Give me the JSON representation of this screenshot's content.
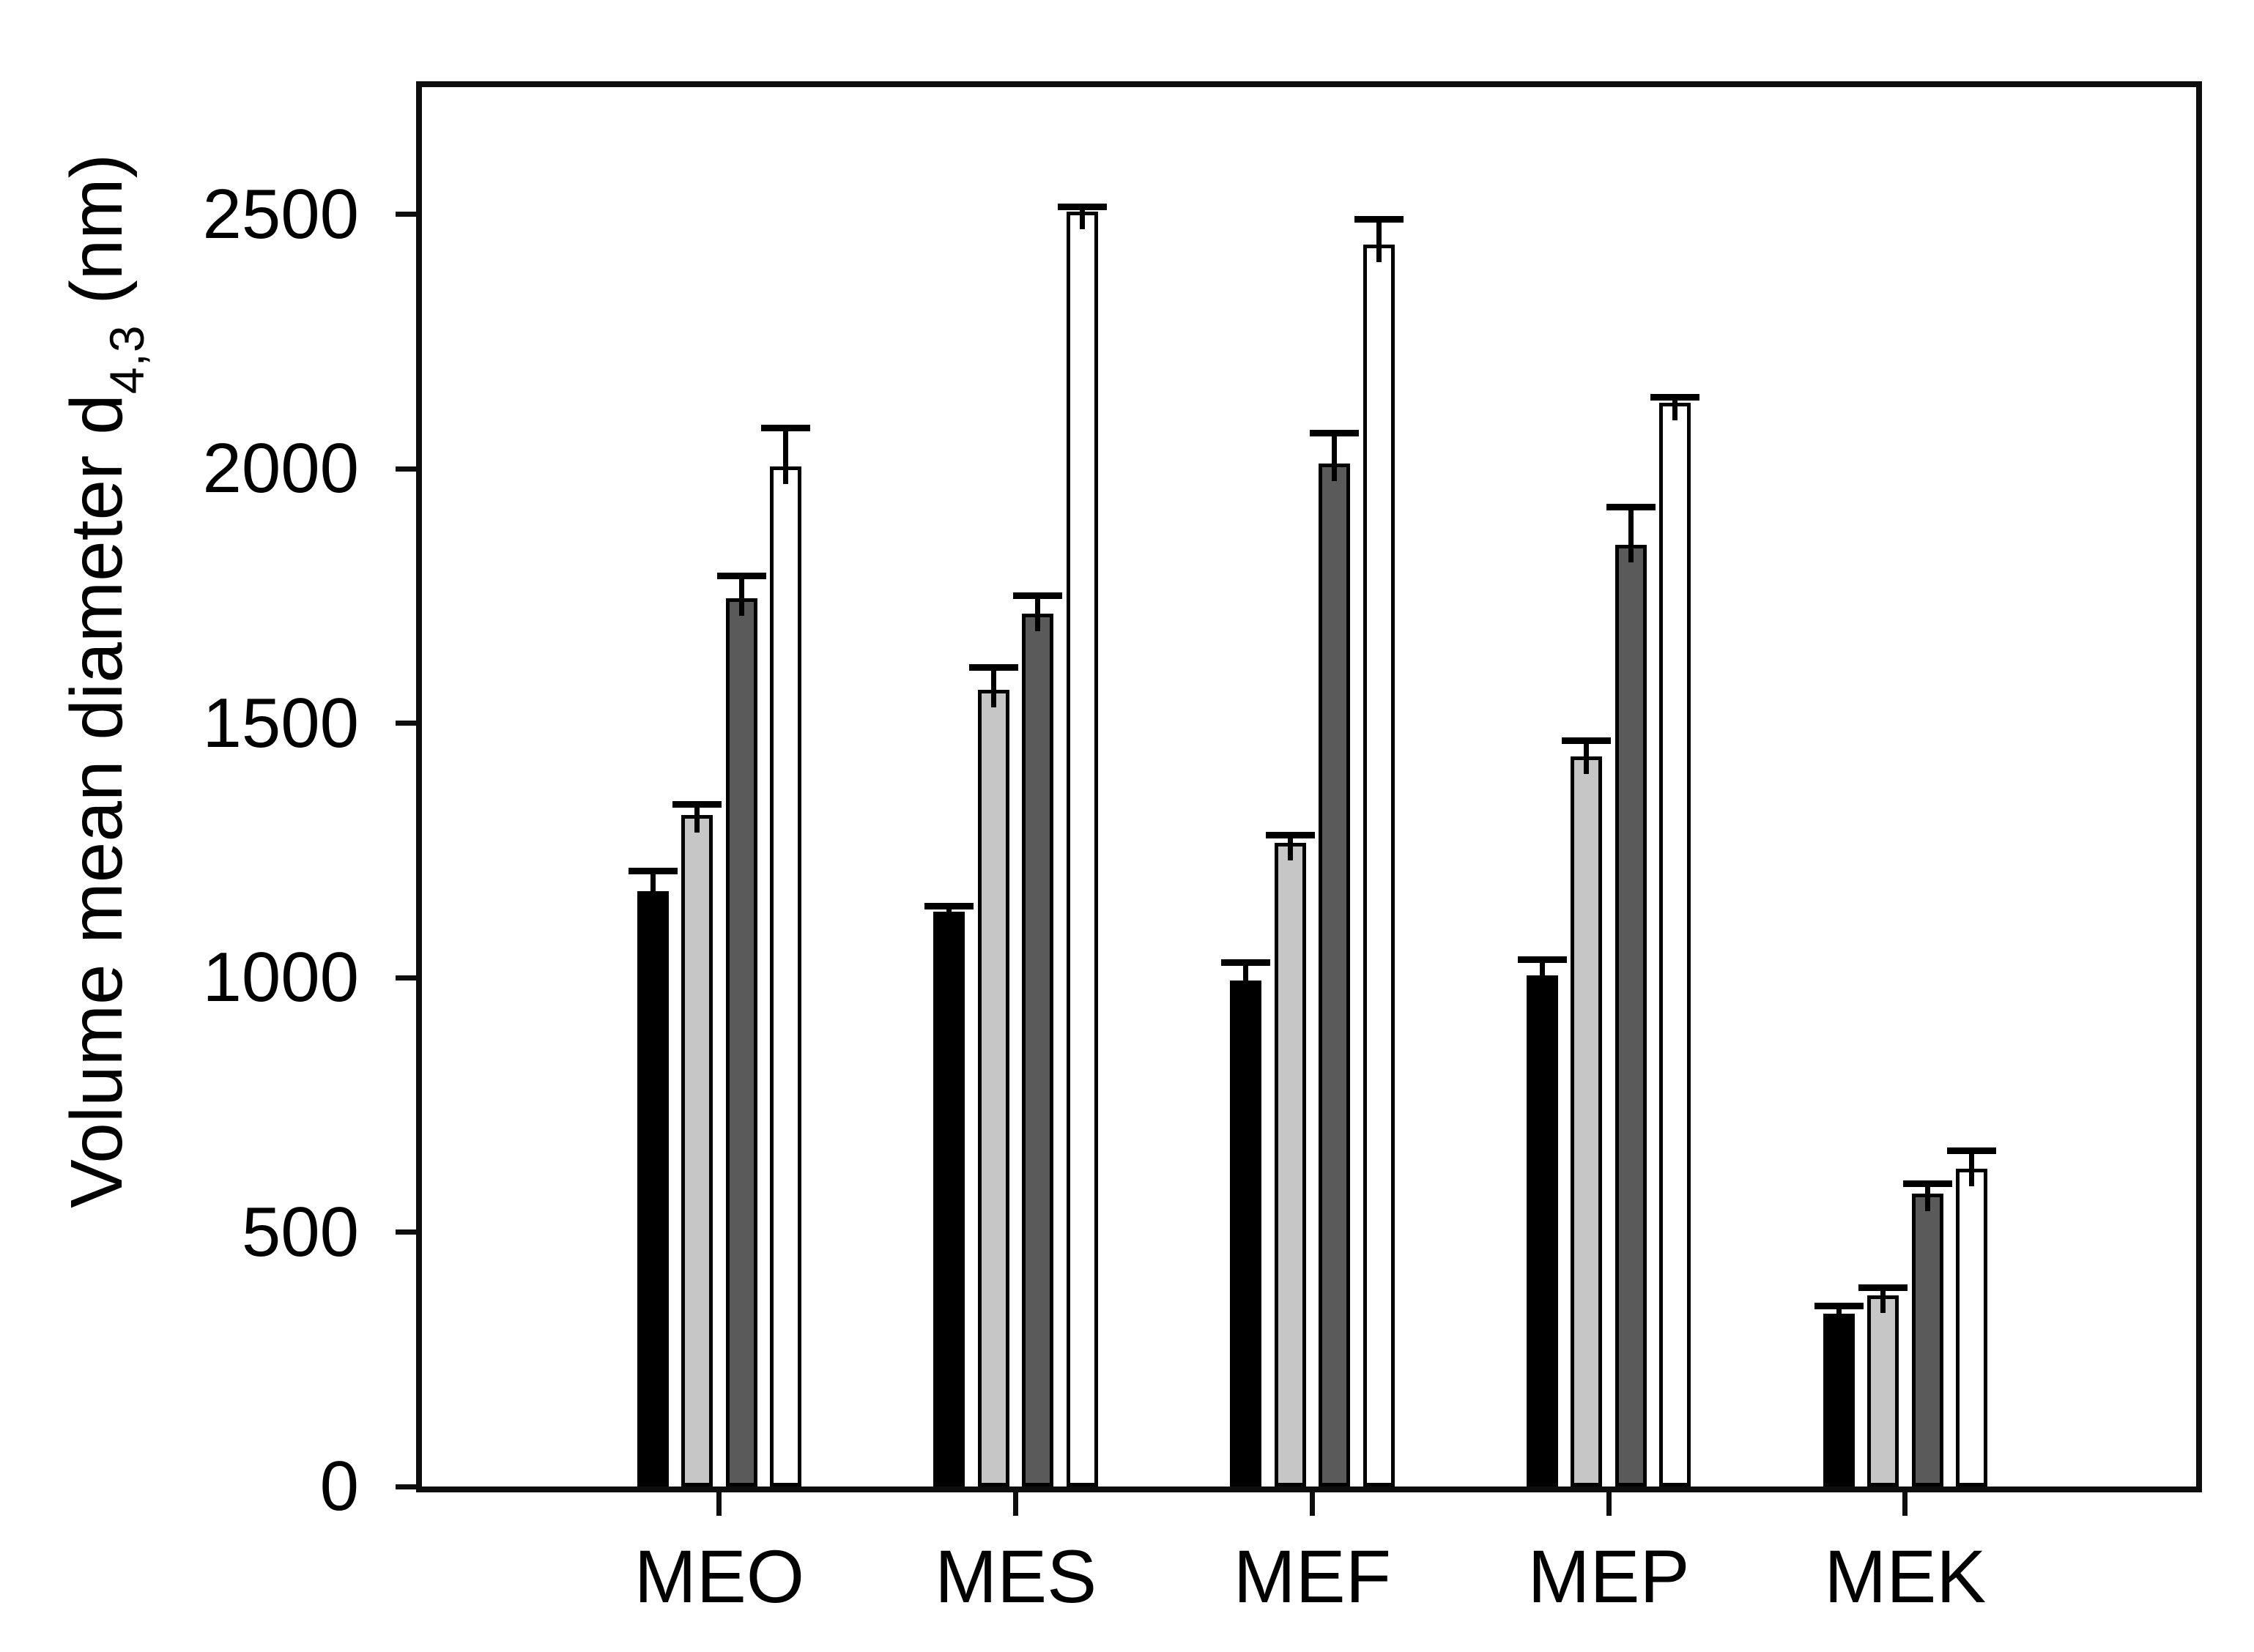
{
  "chart_data": {
    "type": "bar",
    "title": "",
    "xlabel": "",
    "ylabel": "Volume mean diameter d4,3 (nm)",
    "ylabel_parts": {
      "prefix": "Volume mean diameter d",
      "subscript": "4,3",
      "suffix": " (nm)"
    },
    "categories": [
      "MEO",
      "MES",
      "MEF",
      "MEP",
      "MEK"
    ],
    "series": [
      {
        "name": "black",
        "fill": "#000000",
        "outline": "#000000",
        "values": [
          1170,
          1130,
          995,
          1005,
          340
        ],
        "errors": [
          40,
          10,
          35,
          30,
          15
        ]
      },
      {
        "name": "light-gray",
        "fill": "#c6c6c6",
        "outline": "#000000",
        "values": [
          1320,
          1565,
          1265,
          1435,
          375
        ],
        "errors": [
          20,
          45,
          15,
          30,
          15
        ]
      },
      {
        "name": "dark-gray",
        "fill": "#5a5a5a",
        "outline": "#000000",
        "values": [
          1745,
          1715,
          2010,
          1850,
          575
        ],
        "errors": [
          45,
          35,
          60,
          75,
          20
        ]
      },
      {
        "name": "white",
        "fill": "#ffffff",
        "outline": "#000000",
        "values": [
          2005,
          2505,
          2440,
          2130,
          625
        ],
        "errors": [
          75,
          10,
          50,
          10,
          35
        ]
      }
    ],
    "error_bars": {
      "direction": "positive",
      "caps": true,
      "color": "#000000"
    },
    "yticks": [
      0,
      500,
      1000,
      1500,
      2000,
      2500
    ],
    "ylim": [
      0,
      2750
    ],
    "grid": false,
    "legend": null,
    "axis_color": "#0e0e0e",
    "background": "#ffffff"
  }
}
